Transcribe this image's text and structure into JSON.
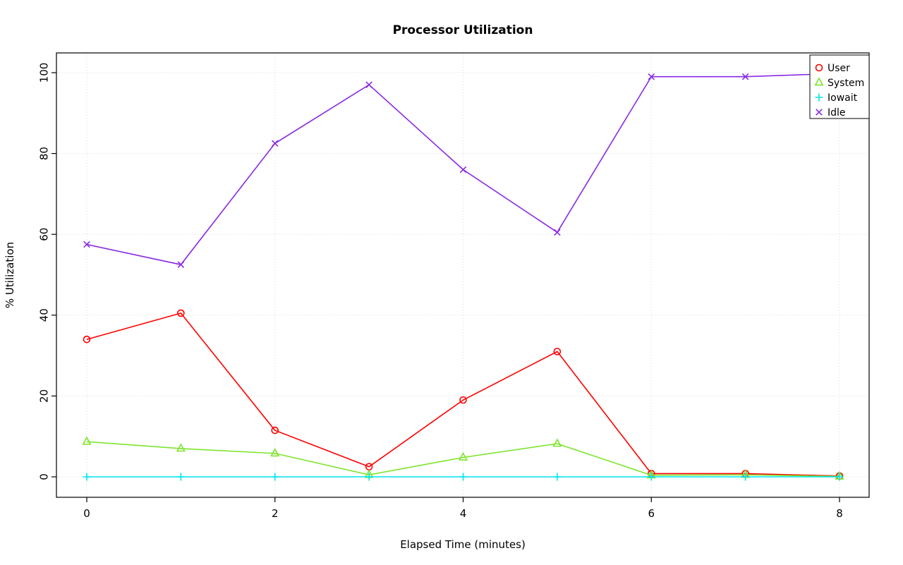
{
  "chart_data": {
    "type": "line",
    "title": "Processor Utilization",
    "xlabel": "Elapsed Time (minutes)",
    "ylabel": "% Utilization",
    "x": [
      0,
      1,
      2,
      3,
      4,
      5,
      6,
      7,
      8
    ],
    "xlim": [
      0,
      8
    ],
    "ylim": [
      0,
      100
    ],
    "xticks": [
      0,
      2,
      4,
      6,
      8
    ],
    "yticks": [
      0,
      20,
      40,
      60,
      80,
      100
    ],
    "grid": true,
    "grid_color": "#D8D8D8",
    "legend_position": "top-right",
    "series": [
      {
        "name": "User",
        "color": "#FF0000",
        "marker": "circle",
        "values": [
          34,
          40.5,
          11.5,
          2.5,
          19,
          31,
          0.8,
          0.8,
          0.2
        ]
      },
      {
        "name": "System",
        "color": "#7CE52B",
        "marker": "triangle",
        "values": [
          8.7,
          7,
          5.8,
          0.5,
          4.8,
          8.2,
          0.4,
          0.5,
          0.1
        ]
      },
      {
        "name": "Iowait",
        "color": "#00E5EE",
        "marker": "plus",
        "values": [
          0,
          0,
          0,
          0,
          0,
          0,
          0,
          0,
          0
        ]
      },
      {
        "name": "Idle",
        "color": "#8A2BE2",
        "marker": "x",
        "values": [
          57.5,
          52.5,
          82.5,
          97,
          76,
          60.5,
          99,
          99,
          99.8
        ]
      }
    ]
  }
}
